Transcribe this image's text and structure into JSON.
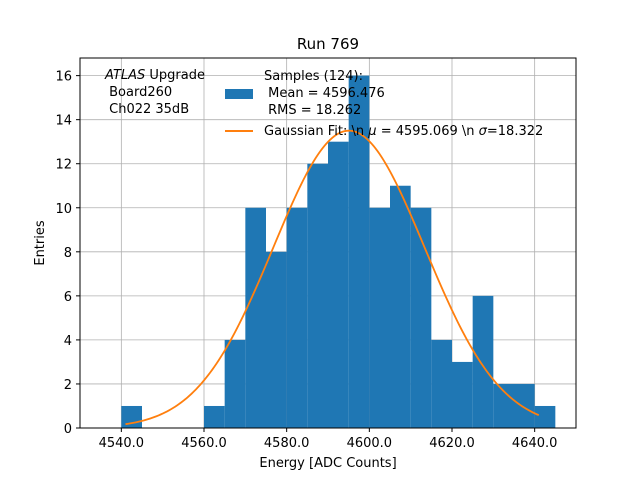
{
  "chart_data": {
    "type": "bar",
    "title": "Run 769",
    "xlabel": "Energy [ADC Counts]",
    "ylabel": "Entries",
    "xlim": [
      4530,
      4650
    ],
    "ylim": [
      0,
      16.8
    ],
    "grid": true,
    "x_ticks": [
      4540,
      4560,
      4580,
      4600,
      4620,
      4640
    ],
    "x_tick_labels": [
      "4540.0",
      "4560.0",
      "4580.0",
      "4600.0",
      "4620.0",
      "4640.0"
    ],
    "y_ticks": [
      0,
      2,
      4,
      6,
      8,
      10,
      12,
      14,
      16
    ],
    "y_tick_labels": [
      "0",
      "2",
      "4",
      "6",
      "8",
      "10",
      "12",
      "14",
      "16"
    ],
    "annotation": {
      "lines": [
        "ATLAS Upgrade",
        " Board260",
        " Ch022 35dB"
      ],
      "italic_word": "ATLAS",
      "rest_of_first_line": " Upgrade"
    },
    "histogram": {
      "name_lines": [
        "Samples (124):",
        " Mean = 4596.476",
        " RMS = 18.262"
      ],
      "color": "#1f77b4",
      "bin_width": 5,
      "bins": [
        {
          "x0": 4540,
          "count": 1
        },
        {
          "x0": 4545,
          "count": 0
        },
        {
          "x0": 4550,
          "count": 0
        },
        {
          "x0": 4555,
          "count": 0
        },
        {
          "x0": 4560,
          "count": 1
        },
        {
          "x0": 4565,
          "count": 4
        },
        {
          "x0": 4570,
          "count": 10
        },
        {
          "x0": 4575,
          "count": 8
        },
        {
          "x0": 4580,
          "count": 10
        },
        {
          "x0": 4585,
          "count": 12
        },
        {
          "x0": 4590,
          "count": 13
        },
        {
          "x0": 4595,
          "count": 16
        },
        {
          "x0": 4600,
          "count": 10
        },
        {
          "x0": 4605,
          "count": 11
        },
        {
          "x0": 4610,
          "count": 10
        },
        {
          "x0": 4615,
          "count": 4
        },
        {
          "x0": 4620,
          "count": 3
        },
        {
          "x0": 4625,
          "count": 6
        },
        {
          "x0": 4630,
          "count": 2
        },
        {
          "x0": 4635,
          "count": 2
        },
        {
          "x0": 4640,
          "count": 1
        }
      ]
    },
    "fit": {
      "name": "Gaussian Fit: \\n μ = 4595.069 \\n σ=18.322",
      "mu_symbol": "μ",
      "sigma_symbol": "σ",
      "legend_text_parts": [
        "Gaussian Fit: \\n ",
        " = 4595.069 \\n ",
        "=18.322"
      ],
      "color": "#ff7f0e",
      "mu": 4595.069,
      "sigma": 18.322,
      "amplitude": 13.5,
      "x_range": [
        4541,
        4641
      ]
    },
    "legend_position": "top-right"
  }
}
